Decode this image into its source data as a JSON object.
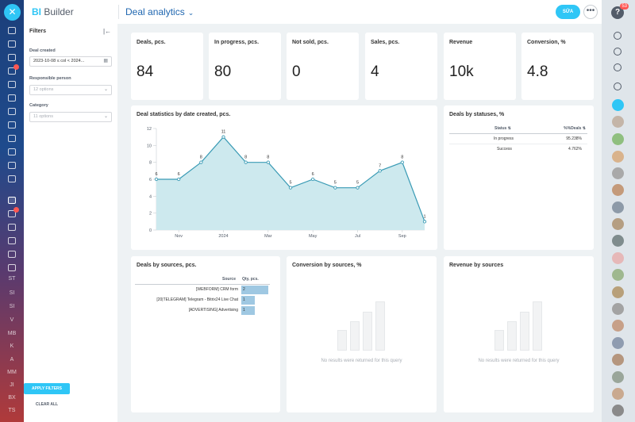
{
  "header": {
    "brand_prefix": "BI",
    "brand_suffix": "Builder",
    "page_title": "Deal analytics",
    "edit_label": "SỬA"
  },
  "right_rail": {
    "notification_count": "53"
  },
  "left_rail": {
    "labels": [
      "ST",
      "SI",
      "SI",
      "V",
      "MB",
      "K",
      "A",
      "MM",
      "JI",
      "BX",
      "TS"
    ]
  },
  "filters": {
    "title": "Filters",
    "deal_created_label": "Deal created",
    "deal_created_value": "2023-10-08 ≤ col < 2024...",
    "responsible_label": "Responsible person",
    "responsible_placeholder": "12 options",
    "category_label": "Category",
    "category_placeholder": "11 options",
    "apply_label": "APPLY FILTERS",
    "clear_label": "CLEAR ALL"
  },
  "kpis": [
    {
      "label": "Deals, pcs.",
      "value": "84"
    },
    {
      "label": "In progress, pcs.",
      "value": "80"
    },
    {
      "label": "Not sold, pcs.",
      "value": "0"
    },
    {
      "label": "Sales, pcs.",
      "value": "4"
    },
    {
      "label": "Revenue",
      "value": "10k"
    },
    {
      "label": "Conversion, %",
      "value": "4.8"
    }
  ],
  "chart_data": {
    "type": "area",
    "title": "Deal statistics by date created, pcs.",
    "x": [
      0,
      1,
      2,
      3,
      4,
      5,
      6,
      7,
      8,
      9,
      10,
      11,
      12
    ],
    "values": [
      6,
      6,
      8,
      11,
      8,
      8,
      5,
      6,
      5,
      5,
      7,
      8,
      1
    ],
    "point_labels": [
      "6",
      "6",
      "8",
      "11",
      "8",
      "8",
      "5",
      "6",
      "5",
      "5",
      "7",
      "8",
      "1"
    ],
    "xticks": [
      {
        "label": "Nov",
        "pos": 1
      },
      {
        "label": "2024",
        "pos": 3
      },
      {
        "label": "Mar",
        "pos": 5
      },
      {
        "label": "May",
        "pos": 7
      },
      {
        "label": "Jul",
        "pos": 9
      },
      {
        "label": "Sep",
        "pos": 11
      }
    ],
    "yticks": [
      "0",
      "2",
      "4",
      "6",
      "8",
      "10",
      "12"
    ],
    "ylim": [
      0,
      12
    ],
    "color": "#3a9bb5",
    "fill": "#cde9ee"
  },
  "statuses": {
    "title": "Deals by statuses, %",
    "col_status": "Status",
    "col_pct": "%%Deals",
    "rows": [
      {
        "status": "In progress",
        "pct": "95.238%"
      },
      {
        "status": "Success",
        "pct": "4.762%"
      }
    ]
  },
  "sources": {
    "title": "Deals by sources, pcs.",
    "col_source": "Source",
    "col_qty": "Qty, pcs.",
    "rows": [
      {
        "source": "[WEBFORM] CRM form",
        "qty": "2",
        "value": 2
      },
      {
        "source": "[20|TELEGRAM] Telegram - Bitrix24 Live Chat",
        "qty": "1",
        "value": 1
      },
      {
        "source": "[ADVERTISING] Advertising",
        "qty": "1",
        "value": 1
      }
    ]
  },
  "conversion_sources": {
    "title": "Conversion by sources, %",
    "empty": "No results were returned for this query"
  },
  "revenue_sources": {
    "title": "Revenue by sources",
    "empty": "No results were returned for this query"
  }
}
